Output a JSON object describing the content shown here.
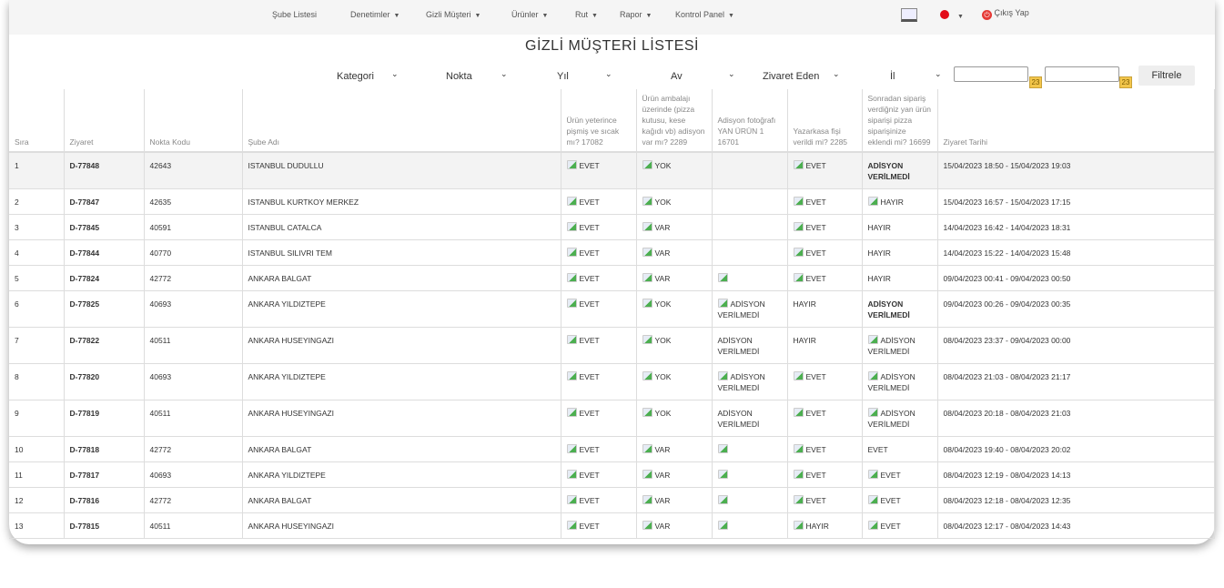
{
  "nav": {
    "items": [
      {
        "label": "Şube Listesi",
        "dropdown": false
      },
      {
        "label": "Denetimler",
        "dropdown": true
      },
      {
        "label": "Gizli Müşteri",
        "dropdown": true
      },
      {
        "label": "Ürünler",
        "dropdown": true
      },
      {
        "label": "Rut",
        "dropdown": true
      },
      {
        "label": "Rapor",
        "dropdown": true
      },
      {
        "label": "Kontrol Panel",
        "dropdown": true
      }
    ],
    "dashboard_icon": "dashboard-screen-icon",
    "language_icon": "turkey-flag-icon",
    "logout_label": "Çıkış Yap",
    "logout_color": "#e53935"
  },
  "page_title": "GİZLİ MÜŞTERİ LİSTESİ",
  "filters": {
    "kategori": "Kategori",
    "nokta": "Nokta",
    "yil": "Yıl",
    "ay": "Av",
    "ziyaret_eden": "Zivaret Eden",
    "il": "İl",
    "start_date": "",
    "end_date": "",
    "calendar_label": "23",
    "submit": "Filtrele"
  },
  "table": {
    "headers": [
      "Sıra",
      "Ziyaret",
      "Nokta Kodu",
      "Şube Adı",
      "Ürün yeterince pişmiş ve sıcak mı? 17082",
      "Ürün ambalajı üzerinde (pizza kutusu, kese kağıdı vb) adisyon var mı? 2289",
      "Adisyon fotoğrafı YAN ÜRÜN 1 16701",
      "Yazarkasa fişi verildi mi? 2285",
      "Sonradan sipariş verdiğniz yan ürün siparişi pizza siparişinize eklendi mi? 16699",
      "Ziyaret Tarihi"
    ],
    "rows": [
      {
        "sira": "1",
        "ziyaret": "D-77848",
        "kod": "42643",
        "sube": "ISTANBUL DUDULLU",
        "c1": {
          "img": true,
          "text": "EVET"
        },
        "c2": {
          "img": true,
          "text": "YOK"
        },
        "c3": {
          "img": false,
          "text": ""
        },
        "c4": {
          "img": true,
          "text": "EVET"
        },
        "c5": {
          "img": false,
          "text": "ADİSYON VERİLMEDİ"
        },
        "tarih": "15/04/2023 18:50 - 15/04/2023 19:03"
      },
      {
        "sira": "2",
        "ziyaret": "D-77847",
        "kod": "42635",
        "sube": "ISTANBUL KURTKOY MERKEZ",
        "c1": {
          "img": true,
          "text": "EVET"
        },
        "c2": {
          "img": true,
          "text": "YOK"
        },
        "c3": {
          "img": false,
          "text": ""
        },
        "c4": {
          "img": true,
          "text": "EVET"
        },
        "c5": {
          "img": true,
          "text": "HAYIR"
        },
        "tarih": "15/04/2023 16:57 - 15/04/2023 17:15"
      },
      {
        "sira": "3",
        "ziyaret": "D-77845",
        "kod": "40591",
        "sube": "ISTANBUL CATALCA",
        "c1": {
          "img": true,
          "text": "EVET"
        },
        "c2": {
          "img": true,
          "text": "VAR"
        },
        "c3": {
          "img": false,
          "text": ""
        },
        "c4": {
          "img": true,
          "text": "EVET"
        },
        "c5": {
          "img": false,
          "text": "HAYIR"
        },
        "tarih": "14/04/2023 16:42 - 14/04/2023 18:31"
      },
      {
        "sira": "4",
        "ziyaret": "D-77844",
        "kod": "40770",
        "sube": "ISTANBUL SILIVRI TEM",
        "c1": {
          "img": true,
          "text": "EVET"
        },
        "c2": {
          "img": true,
          "text": "VAR"
        },
        "c3": {
          "img": false,
          "text": ""
        },
        "c4": {
          "img": true,
          "text": "EVET"
        },
        "c5": {
          "img": false,
          "text": "HAYIR"
        },
        "tarih": "14/04/2023 15:22 - 14/04/2023 15:48"
      },
      {
        "sira": "5",
        "ziyaret": "D-77824",
        "kod": "42772",
        "sube": "ANKARA BALGAT",
        "c1": {
          "img": true,
          "text": "EVET"
        },
        "c2": {
          "img": true,
          "text": "VAR"
        },
        "c3": {
          "img": true,
          "text": ""
        },
        "c4": {
          "img": true,
          "text": "EVET"
        },
        "c5": {
          "img": false,
          "text": "HAYIR"
        },
        "tarih": "09/04/2023 00:41 - 09/04/2023 00:50"
      },
      {
        "sira": "6",
        "ziyaret": "D-77825",
        "kod": "40693",
        "sube": "ANKARA YILDIZTEPE",
        "c1": {
          "img": true,
          "text": "EVET"
        },
        "c2": {
          "img": true,
          "text": "YOK"
        },
        "c3": {
          "img": true,
          "text": "ADİSYON VERİLMEDİ"
        },
        "c4": {
          "img": false,
          "text": "HAYIR"
        },
        "c5": {
          "img": false,
          "text": "ADİSYON VERİLMEDİ"
        },
        "tarih": "09/04/2023 00:26 - 09/04/2023 00:35"
      },
      {
        "sira": "7",
        "ziyaret": "D-77822",
        "kod": "40511",
        "sube": "ANKARA HUSEYINGAZI",
        "c1": {
          "img": true,
          "text": "EVET"
        },
        "c2": {
          "img": true,
          "text": "YOK"
        },
        "c3": {
          "img": false,
          "text": "ADİSYON VERİLMEDİ"
        },
        "c4": {
          "img": false,
          "text": "HAYIR"
        },
        "c5": {
          "img": true,
          "text": "ADİSYON VERİLMEDİ"
        },
        "tarih": "08/04/2023 23:37 - 09/04/2023 00:00"
      },
      {
        "sira": "8",
        "ziyaret": "D-77820",
        "kod": "40693",
        "sube": "ANKARA YILDIZTEPE",
        "c1": {
          "img": true,
          "text": "EVET"
        },
        "c2": {
          "img": true,
          "text": "YOK"
        },
        "c3": {
          "img": true,
          "text": "ADİSYON VERİLMEDİ"
        },
        "c4": {
          "img": true,
          "text": "EVET"
        },
        "c5": {
          "img": true,
          "text": "ADİSYON VERİLMEDİ"
        },
        "tarih": "08/04/2023 21:03 - 08/04/2023 21:17"
      },
      {
        "sira": "9",
        "ziyaret": "D-77819",
        "kod": "40511",
        "sube": "ANKARA HUSEYINGAZI",
        "c1": {
          "img": true,
          "text": "EVET"
        },
        "c2": {
          "img": true,
          "text": "YOK"
        },
        "c3": {
          "img": false,
          "text": "ADİSYON VERİLMEDİ"
        },
        "c4": {
          "img": true,
          "text": "EVET"
        },
        "c5": {
          "img": true,
          "text": "ADİSYON VERİLMEDİ"
        },
        "tarih": "08/04/2023 20:18 - 08/04/2023 21:03"
      },
      {
        "sira": "10",
        "ziyaret": "D-77818",
        "kod": "42772",
        "sube": "ANKARA BALGAT",
        "c1": {
          "img": true,
          "text": "EVET"
        },
        "c2": {
          "img": true,
          "text": "VAR"
        },
        "c3": {
          "img": true,
          "text": ""
        },
        "c4": {
          "img": true,
          "text": "EVET"
        },
        "c5": {
          "img": false,
          "text": "EVET"
        },
        "tarih": "08/04/2023 19:40 - 08/04/2023 20:02"
      },
      {
        "sira": "11",
        "ziyaret": "D-77817",
        "kod": "40693",
        "sube": "ANKARA YILDIZTEPE",
        "c1": {
          "img": true,
          "text": "EVET"
        },
        "c2": {
          "img": true,
          "text": "VAR"
        },
        "c3": {
          "img": true,
          "text": ""
        },
        "c4": {
          "img": true,
          "text": "EVET"
        },
        "c5": {
          "img": true,
          "text": "EVET"
        },
        "tarih": "08/04/2023 12:19 - 08/04/2023 14:13"
      },
      {
        "sira": "12",
        "ziyaret": "D-77816",
        "kod": "42772",
        "sube": "ANKARA BALGAT",
        "c1": {
          "img": true,
          "text": "EVET"
        },
        "c2": {
          "img": true,
          "text": "VAR"
        },
        "c3": {
          "img": true,
          "text": ""
        },
        "c4": {
          "img": true,
          "text": "EVET"
        },
        "c5": {
          "img": true,
          "text": "EVET"
        },
        "tarih": "08/04/2023 12:18 - 08/04/2023 12:35"
      },
      {
        "sira": "13",
        "ziyaret": "D-77815",
        "kod": "40511",
        "sube": "ANKARA HUSEYINGAZI",
        "c1": {
          "img": true,
          "text": "EVET"
        },
        "c2": {
          "img": true,
          "text": "VAR"
        },
        "c3": {
          "img": true,
          "text": ""
        },
        "c4": {
          "img": true,
          "text": "HAYIR"
        },
        "c5": {
          "img": true,
          "text": "EVET"
        },
        "tarih": "08/04/2023 12:17 - 08/04/2023 14:43"
      }
    ]
  }
}
